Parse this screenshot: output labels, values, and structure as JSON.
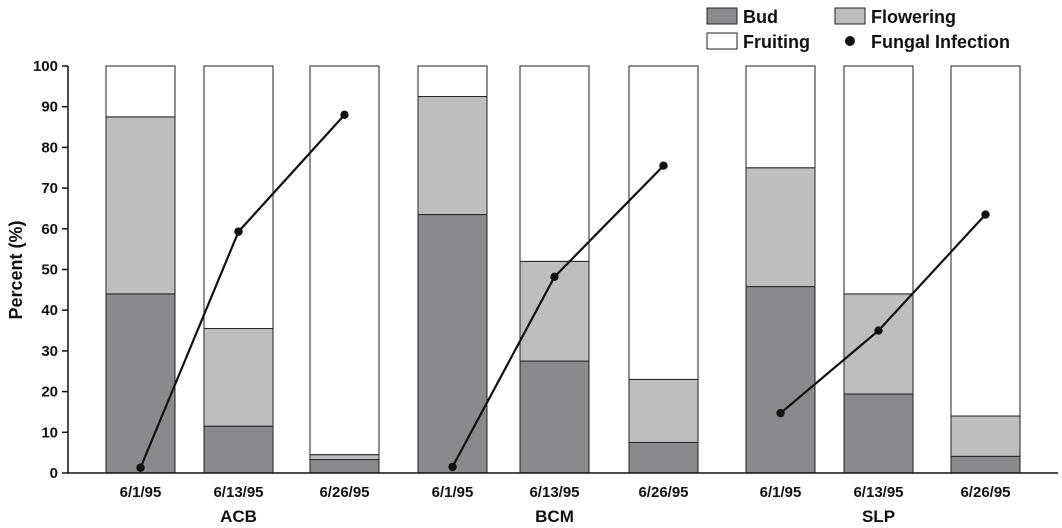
{
  "chart_data": {
    "type": "bar",
    "stacked": true,
    "ylabel": "Percent (%)",
    "ylim": [
      0,
      100
    ],
    "yticks": [
      0,
      10,
      20,
      30,
      40,
      50,
      60,
      70,
      80,
      90,
      100
    ],
    "groups": [
      "ACB",
      "BCM",
      "SLP"
    ],
    "categories": [
      "6/1/95",
      "6/13/95",
      "6/26/95",
      "6/1/95",
      "6/13/95",
      "6/26/95",
      "6/1/95",
      "6/13/95",
      "6/26/95"
    ],
    "series": [
      {
        "name": "Bud",
        "color": "#8a8a8e",
        "values": [
          44,
          11.5,
          3.3,
          63.5,
          27.5,
          7.5,
          45.8,
          19.4,
          4.1
        ]
      },
      {
        "name": "Flowering",
        "color": "#bebebe",
        "values": [
          43.5,
          24,
          1.2,
          29,
          24.5,
          15.5,
          29.2,
          24.6,
          9.9
        ]
      },
      {
        "name": "Fruiting",
        "color": "#ffffff",
        "values": [
          12.5,
          64.5,
          95.5,
          7.5,
          48,
          77,
          25,
          56,
          86
        ]
      }
    ],
    "line_series": {
      "name": "Fungal Infection",
      "values": [
        1.3,
        59.3,
        88,
        1.5,
        48.2,
        75.5,
        14.7,
        35,
        63.5
      ]
    },
    "legend_position": "top-right",
    "grid": false
  }
}
